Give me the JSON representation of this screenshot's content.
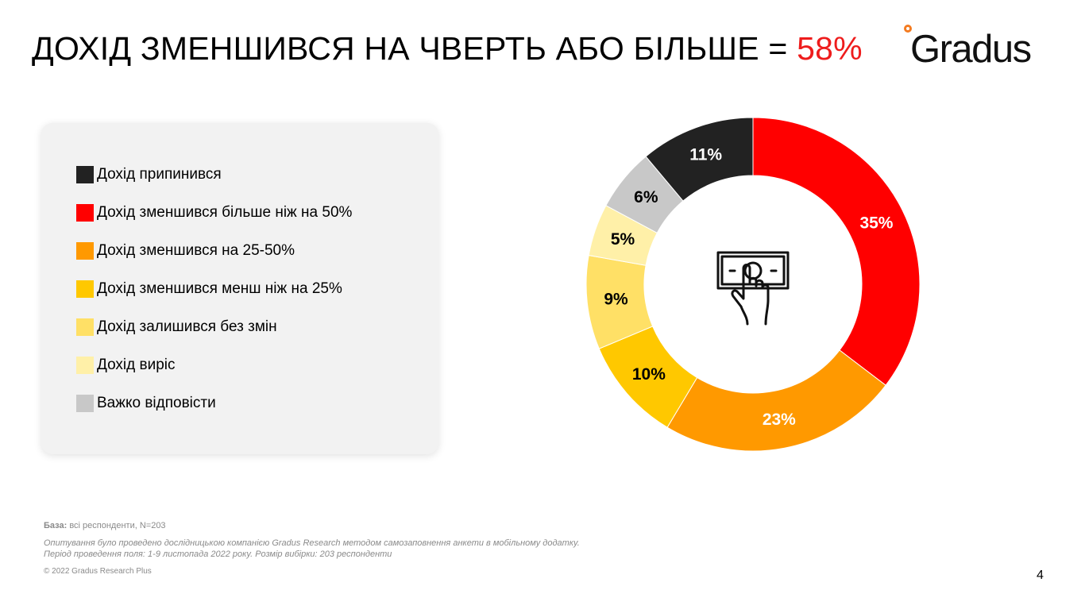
{
  "header": {
    "title_prefix": "ДОХІД ЗМЕНШИВСЯ НА ЧВЕРТЬ АБО БІЛЬШЕ = ",
    "title_highlight": "58%",
    "highlight_color": "#ee1c1c"
  },
  "logo": {
    "text": "Gradus",
    "accent_color": "#f47b20"
  },
  "center_icon": "hand-with-banknote-icon",
  "chart_data": {
    "type": "pie",
    "variant": "donut",
    "title": "",
    "legend_position": "left",
    "slices": [
      {
        "label": "Дохід припинився",
        "value": 11,
        "display": "11%",
        "color": "#222222"
      },
      {
        "label": "Дохід зменшився більше ніж на 50%",
        "value": 35,
        "display": "35%",
        "color": "#ff0000"
      },
      {
        "label": "Дохід зменшився на 25-50%",
        "value": 23,
        "display": "23%",
        "color": "#ff9900"
      },
      {
        "label": "Дохід зменшився менш ніж на 25%",
        "value": 10,
        "display": "10%",
        "color": "#ffc800"
      },
      {
        "label": "Дохід залишився без змін",
        "value": 9,
        "display": "9%",
        "color": "#ffe066"
      },
      {
        "label": "Дохід виріс",
        "value": 5,
        "display": "5%",
        "color": "#fff0a8"
      },
      {
        "label": "Важко відповісти",
        "value": 6,
        "display": "6%",
        "color": "#c8c8c8"
      }
    ]
  },
  "footer": {
    "base_label": "База:",
    "base_text": " всі респонденти, N=203",
    "method_line1": "Опитування було проведено дослідницькою компанією Gradus Research методом самозаповнення анкети в мобільному додатку.",
    "method_line2": "Період проведення поля: 1-9 листопада 2022 року. Розмір вибірки: 203 респонденти",
    "copyright": "© 2022 Gradus Research Plus"
  },
  "page_number": "4"
}
